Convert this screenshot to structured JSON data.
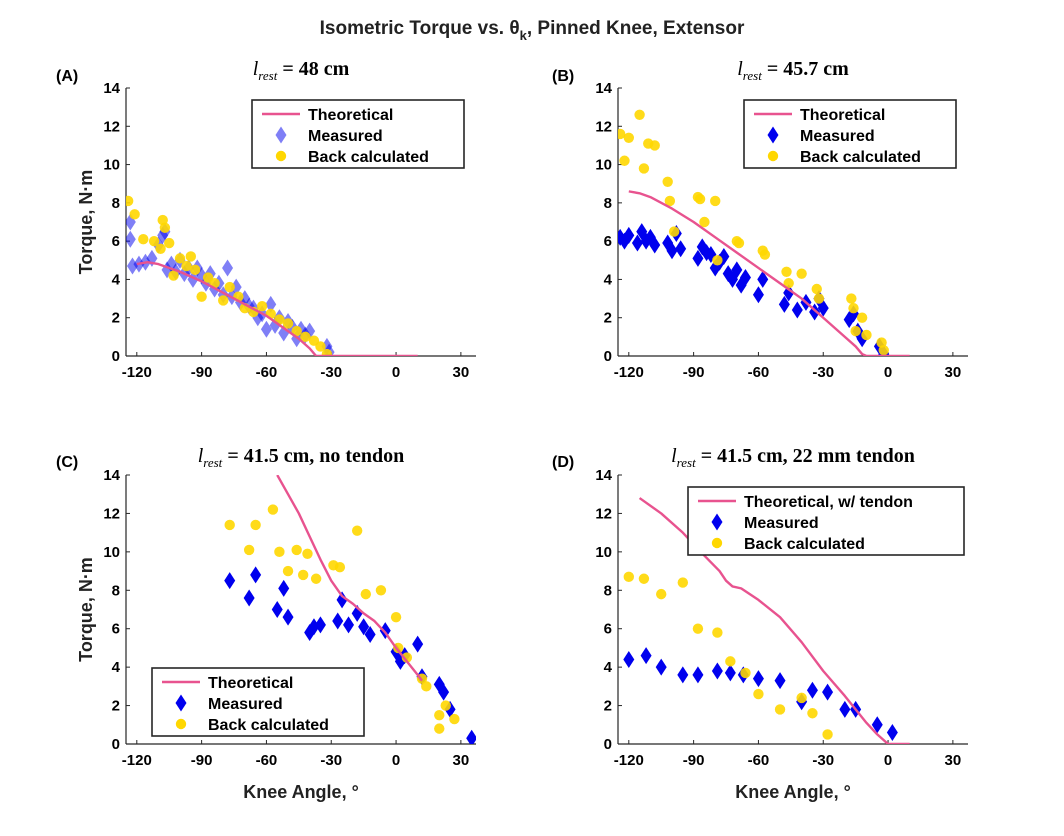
{
  "figure": {
    "title": "Isometric Torque vs. θ",
    "title_subscript": "k",
    "title_suffix": ", Pinned Knee, Extensor"
  },
  "colors": {
    "theoretical": "#e8538f",
    "measured": "#0000ee",
    "back_calculated": "#ffd700"
  },
  "chart_data": [
    {
      "type": "scatter",
      "panel_label": "(A)",
      "subtitle_symbol": "l",
      "subtitle_subscript": "rest",
      "subtitle_rest": " = 48 cm",
      "xlabel": "",
      "ylabel": "Torque, N·m",
      "xlim": [
        -125,
        37
      ],
      "ylim": [
        0,
        14
      ],
      "xticks": [
        -120,
        -90,
        -60,
        -30,
        0,
        30
      ],
      "yticks": [
        0,
        2,
        4,
        6,
        8,
        10,
        12,
        14
      ],
      "legend": {
        "position": "top-right",
        "entries": [
          "Theoretical",
          "Measured",
          "Back calculated"
        ]
      },
      "measured_style": "translucent",
      "series": [
        {
          "name": "Theoretical",
          "kind": "line",
          "x": [
            -120,
            -115,
            -110,
            -100,
            -90,
            -80,
            -70,
            -60,
            -50,
            -45,
            -40,
            -37,
            -30,
            -20,
            -10,
            0,
            10
          ],
          "y": [
            4.8,
            4.9,
            4.8,
            4.4,
            3.9,
            3.3,
            2.7,
            2.1,
            1.3,
            0.9,
            0.4,
            0,
            0,
            0,
            0,
            0,
            0
          ]
        },
        {
          "name": "Measured",
          "kind": "scatter",
          "x": [
            -123,
            -123,
            -122,
            -119,
            -116,
            -113,
            -110,
            -108,
            -107,
            -106,
            -104,
            -102,
            -100,
            -98,
            -96,
            -94,
            -92,
            -90,
            -88,
            -86,
            -84,
            -82,
            -80,
            -78,
            -76,
            -74,
            -72,
            -70,
            -68,
            -66,
            -64,
            -62,
            -60,
            -58,
            -56,
            -54,
            -52,
            -50,
            -48,
            -46,
            -44,
            -42,
            -40,
            -32,
            -31
          ],
          "y": [
            7.0,
            6.1,
            4.7,
            4.8,
            4.9,
            5.1,
            5.8,
            6.3,
            6.5,
            4.5,
            4.8,
            4.4,
            5.0,
            4.3,
            4.6,
            4.0,
            4.6,
            4.2,
            3.8,
            4.3,
            3.5,
            3.8,
            3.2,
            4.6,
            3.1,
            3.6,
            2.8,
            3.0,
            2.6,
            2.5,
            2.0,
            2.2,
            1.4,
            2.7,
            1.6,
            2.0,
            1.2,
            1.8,
            1.5,
            0.9,
            1.4,
            1.1,
            1.3,
            0.5,
            0.2
          ]
        },
        {
          "name": "Back calculated",
          "kind": "scatter",
          "x": [
            -124,
            -121,
            -117,
            -112,
            -109,
            -108,
            -107,
            -105,
            -103,
            -100,
            -97,
            -95,
            -93,
            -90,
            -87,
            -84,
            -80,
            -77,
            -73,
            -70,
            -66,
            -62,
            -58,
            -54,
            -50,
            -46,
            -42,
            -38,
            -35,
            -32
          ],
          "y": [
            8.1,
            7.4,
            6.1,
            6.0,
            5.6,
            7.1,
            6.7,
            5.9,
            4.2,
            5.1,
            4.7,
            5.2,
            4.5,
            3.1,
            4.1,
            3.8,
            2.9,
            3.6,
            3.1,
            2.5,
            2.3,
            2.6,
            2.2,
            1.9,
            1.7,
            1.3,
            1.0,
            0.8,
            0.5,
            0.1
          ]
        }
      ]
    },
    {
      "type": "scatter",
      "panel_label": "(B)",
      "subtitle_symbol": "l",
      "subtitle_subscript": "rest",
      "subtitle_rest": " = 45.7 cm",
      "xlabel": "",
      "ylabel": "",
      "xlim": [
        -125,
        37
      ],
      "ylim": [
        0,
        14
      ],
      "xticks": [
        -120,
        -90,
        -60,
        -30,
        0,
        30
      ],
      "yticks": [
        0,
        2,
        4,
        6,
        8,
        10,
        12,
        14
      ],
      "legend": {
        "position": "top-right",
        "entries": [
          "Theoretical",
          "Measured",
          "Back calculated"
        ]
      },
      "measured_style": "solid",
      "series": [
        {
          "name": "Theoretical",
          "kind": "line",
          "x": [
            -120,
            -115,
            -110,
            -100,
            -90,
            -80,
            -70,
            -60,
            -50,
            -40,
            -30,
            -20,
            -15,
            -12,
            -10,
            -5,
            0,
            10
          ],
          "y": [
            8.6,
            8.5,
            8.3,
            7.7,
            7.0,
            6.2,
            5.4,
            4.6,
            3.8,
            3.0,
            2.0,
            1.0,
            0.5,
            0.1,
            0,
            0,
            0,
            0
          ]
        },
        {
          "name": "Measured",
          "kind": "scatter",
          "x": [
            -124,
            -122,
            -120,
            -116,
            -114,
            -112,
            -110,
            -108,
            -102,
            -100,
            -98,
            -96,
            -88,
            -86,
            -84,
            -82,
            -80,
            -78,
            -76,
            -74,
            -72,
            -70,
            -68,
            -66,
            -60,
            -58,
            -48,
            -46,
            -42,
            -38,
            -34,
            -32,
            -30,
            -18,
            -16,
            -14,
            -12,
            -4,
            -2
          ],
          "y": [
            6.2,
            6.0,
            6.3,
            5.9,
            6.5,
            6.0,
            6.2,
            5.8,
            5.9,
            5.5,
            6.4,
            5.6,
            5.1,
            5.7,
            5.4,
            5.3,
            4.6,
            4.9,
            5.2,
            4.3,
            4.0,
            4.5,
            3.7,
            4.1,
            3.2,
            4.0,
            2.7,
            3.3,
            2.4,
            2.8,
            2.3,
            3.0,
            2.5,
            1.9,
            2.2,
            1.3,
            0.9,
            0.5,
            0.1
          ]
        },
        {
          "name": "Back calculated",
          "kind": "scatter",
          "x": [
            -124,
            -122,
            -120,
            -115,
            -113,
            -111,
            -108,
            -102,
            -101,
            -99,
            -88,
            -87,
            -85,
            -80,
            -79,
            -70,
            -69,
            -58,
            -57,
            -47,
            -46,
            -40,
            -33,
            -32,
            -17,
            -16,
            -15,
            -12,
            -10,
            -3,
            -2
          ],
          "y": [
            11.6,
            10.2,
            11.4,
            12.6,
            9.8,
            11.1,
            11.0,
            9.1,
            8.1,
            6.5,
            8.3,
            8.2,
            7.0,
            8.1,
            5.0,
            6.0,
            5.9,
            5.5,
            5.3,
            4.4,
            3.8,
            4.3,
            3.5,
            3.0,
            3.0,
            2.5,
            1.3,
            2.0,
            1.1,
            0.7,
            0.3
          ]
        }
      ]
    },
    {
      "type": "scatter",
      "panel_label": "(C)",
      "subtitle_symbol": "l",
      "subtitle_subscript": "rest",
      "subtitle_rest": " = 41.5 cm, no tendon",
      "xlabel": "Knee Angle, °",
      "ylabel": "Torque, N·m",
      "xlim": [
        -125,
        37
      ],
      "ylim": [
        0,
        14
      ],
      "xticks": [
        -120,
        -90,
        -60,
        -30,
        0,
        30
      ],
      "yticks": [
        0,
        2,
        4,
        6,
        8,
        10,
        12,
        14
      ],
      "legend": {
        "position": "bottom-left",
        "entries": [
          "Theoretical",
          "Measured",
          "Back calculated"
        ]
      },
      "measured_style": "solid",
      "series": [
        {
          "name": "Theoretical",
          "kind": "line",
          "x": [
            -55,
            -50,
            -45,
            -40,
            -35,
            -30,
            -25,
            -20,
            -15,
            -10,
            -5,
            0,
            5,
            10,
            12
          ],
          "y": [
            14.0,
            13.0,
            12.0,
            10.8,
            9.6,
            8.5,
            7.7,
            7.3,
            6.8,
            6.4,
            5.8,
            5.0,
            4.3,
            3.6,
            3.3
          ]
        },
        {
          "name": "Measured",
          "kind": "scatter",
          "x": [
            -77,
            -68,
            -65,
            -55,
            -52,
            -50,
            -40,
            -38,
            -35,
            -27,
            -25,
            -22,
            -18,
            -15,
            -12,
            -5,
            0,
            2,
            4,
            10,
            12,
            20,
            22,
            25,
            35
          ],
          "y": [
            8.5,
            7.6,
            8.8,
            7.0,
            8.1,
            6.6,
            5.8,
            6.1,
            6.2,
            6.4,
            7.5,
            6.2,
            6.8,
            6.1,
            5.7,
            5.9,
            4.8,
            4.3,
            4.6,
            5.2,
            3.5,
            3.1,
            2.7,
            1.8,
            0.3
          ]
        },
        {
          "name": "Back calculated",
          "kind": "scatter",
          "x": [
            -77,
            -68,
            -65,
            -57,
            -54,
            -50,
            -46,
            -43,
            -41,
            -37,
            -29,
            -26,
            -18,
            -14,
            -7,
            0,
            1,
            5,
            12,
            14,
            20,
            20,
            23,
            27
          ],
          "y": [
            11.4,
            10.1,
            11.4,
            12.2,
            10.0,
            9.0,
            10.1,
            8.8,
            9.9,
            8.6,
            9.3,
            9.2,
            11.1,
            7.8,
            8.0,
            6.6,
            5.0,
            4.5,
            3.4,
            3.0,
            1.5,
            0.8,
            2.0,
            1.3
          ]
        }
      ]
    },
    {
      "type": "scatter",
      "panel_label": "(D)",
      "subtitle_symbol": "l",
      "subtitle_subscript": "rest",
      "subtitle_rest": " = 41.5 cm, 22 mm tendon",
      "xlabel": "Knee Angle, °",
      "ylabel": "",
      "xlim": [
        -125,
        37
      ],
      "ylim": [
        0,
        14
      ],
      "xticks": [
        -120,
        -90,
        -60,
        -30,
        0,
        30
      ],
      "yticks": [
        0,
        2,
        4,
        6,
        8,
        10,
        12,
        14
      ],
      "legend": {
        "position": "top-right",
        "entries": [
          "Theoretical, w/ tendon",
          "Measured",
          "Back calculated"
        ]
      },
      "measured_style": "solid",
      "series": [
        {
          "name": "Theoretical, w/ tendon",
          "kind": "line",
          "x": [
            -115,
            -105,
            -95,
            -85,
            -78,
            -75,
            -72,
            -68,
            -60,
            -50,
            -40,
            -30,
            -20,
            -10,
            -5,
            0,
            10
          ],
          "y": [
            12.8,
            12.0,
            11.0,
            9.8,
            9.0,
            8.5,
            8.2,
            8.1,
            7.5,
            6.6,
            5.3,
            3.8,
            2.5,
            1.1,
            0.5,
            0.0,
            0.0
          ]
        },
        {
          "name": "Measured",
          "kind": "scatter",
          "x": [
            -120,
            -112,
            -105,
            -95,
            -88,
            -79,
            -73,
            -67,
            -60,
            -50,
            -40,
            -35,
            -28,
            -20,
            -15,
            -5,
            2
          ],
          "y": [
            4.4,
            4.6,
            4.0,
            3.6,
            3.6,
            3.8,
            3.7,
            3.6,
            3.4,
            3.3,
            2.2,
            2.8,
            2.7,
            1.8,
            1.8,
            1.0,
            0.6
          ]
        },
        {
          "name": "Back calculated",
          "kind": "scatter",
          "x": [
            -120,
            -113,
            -105,
            -95,
            -88,
            -79,
            -73,
            -66,
            -60,
            -50,
            -40,
            -35,
            -28
          ],
          "y": [
            8.7,
            8.6,
            7.8,
            8.4,
            6.0,
            5.8,
            4.3,
            3.7,
            2.6,
            1.8,
            2.4,
            1.6,
            0.5
          ]
        }
      ]
    }
  ]
}
